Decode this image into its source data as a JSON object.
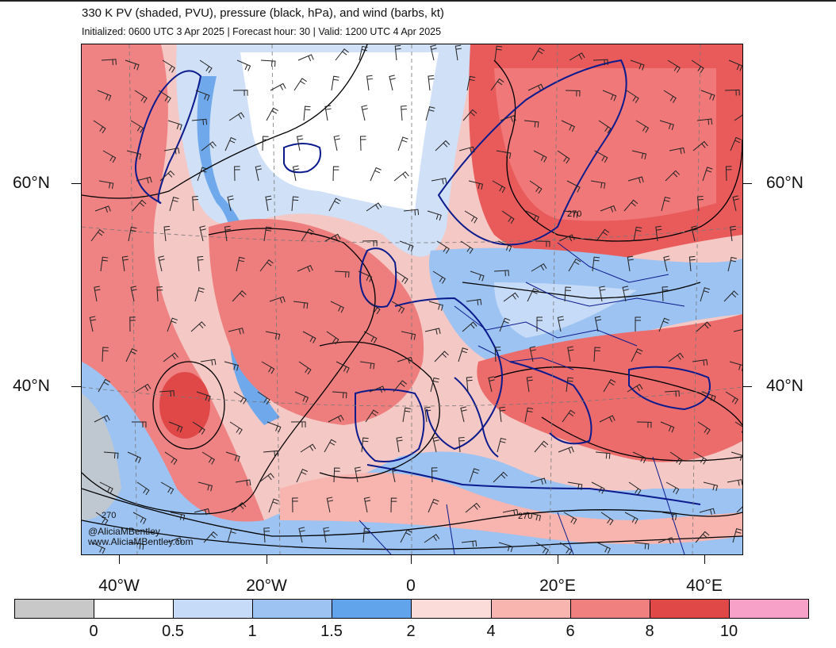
{
  "header": {
    "title": "330 K PV (shaded, PVU), pressure (black, hPa), and wind (barbs, kt)",
    "subtitle": "Initialized: 0600 UTC 3 Apr 2025 | Forecast hour: 30 | Valid: 1200 UTC 4 Apr 2025"
  },
  "map": {
    "lat_labels": [
      "60°N",
      "40°N"
    ],
    "lon_labels": [
      "40°W",
      "20°W",
      "0",
      "20°E",
      "40°E"
    ],
    "contour_labels": [
      "270",
      "270",
      "270"
    ]
  },
  "credit": {
    "handle": "@AliciaMBentley",
    "site": "www.AliciaMBentley.com"
  },
  "colorbar": {
    "labels": [
      "0",
      "0.5",
      "1",
      "1.5",
      "2",
      "4",
      "6",
      "8",
      "10"
    ],
    "colors": [
      "#c8c8c8",
      "#ffffff",
      "#c6dbf7",
      "#9cc3f2",
      "#62a4ec",
      "#fcdcd8",
      "#f8b4ae",
      "#f07f7f",
      "#e04848",
      "#f7a1c8"
    ]
  },
  "colors": {
    "coast": "#0b1a8c",
    "contour": "#000000"
  }
}
